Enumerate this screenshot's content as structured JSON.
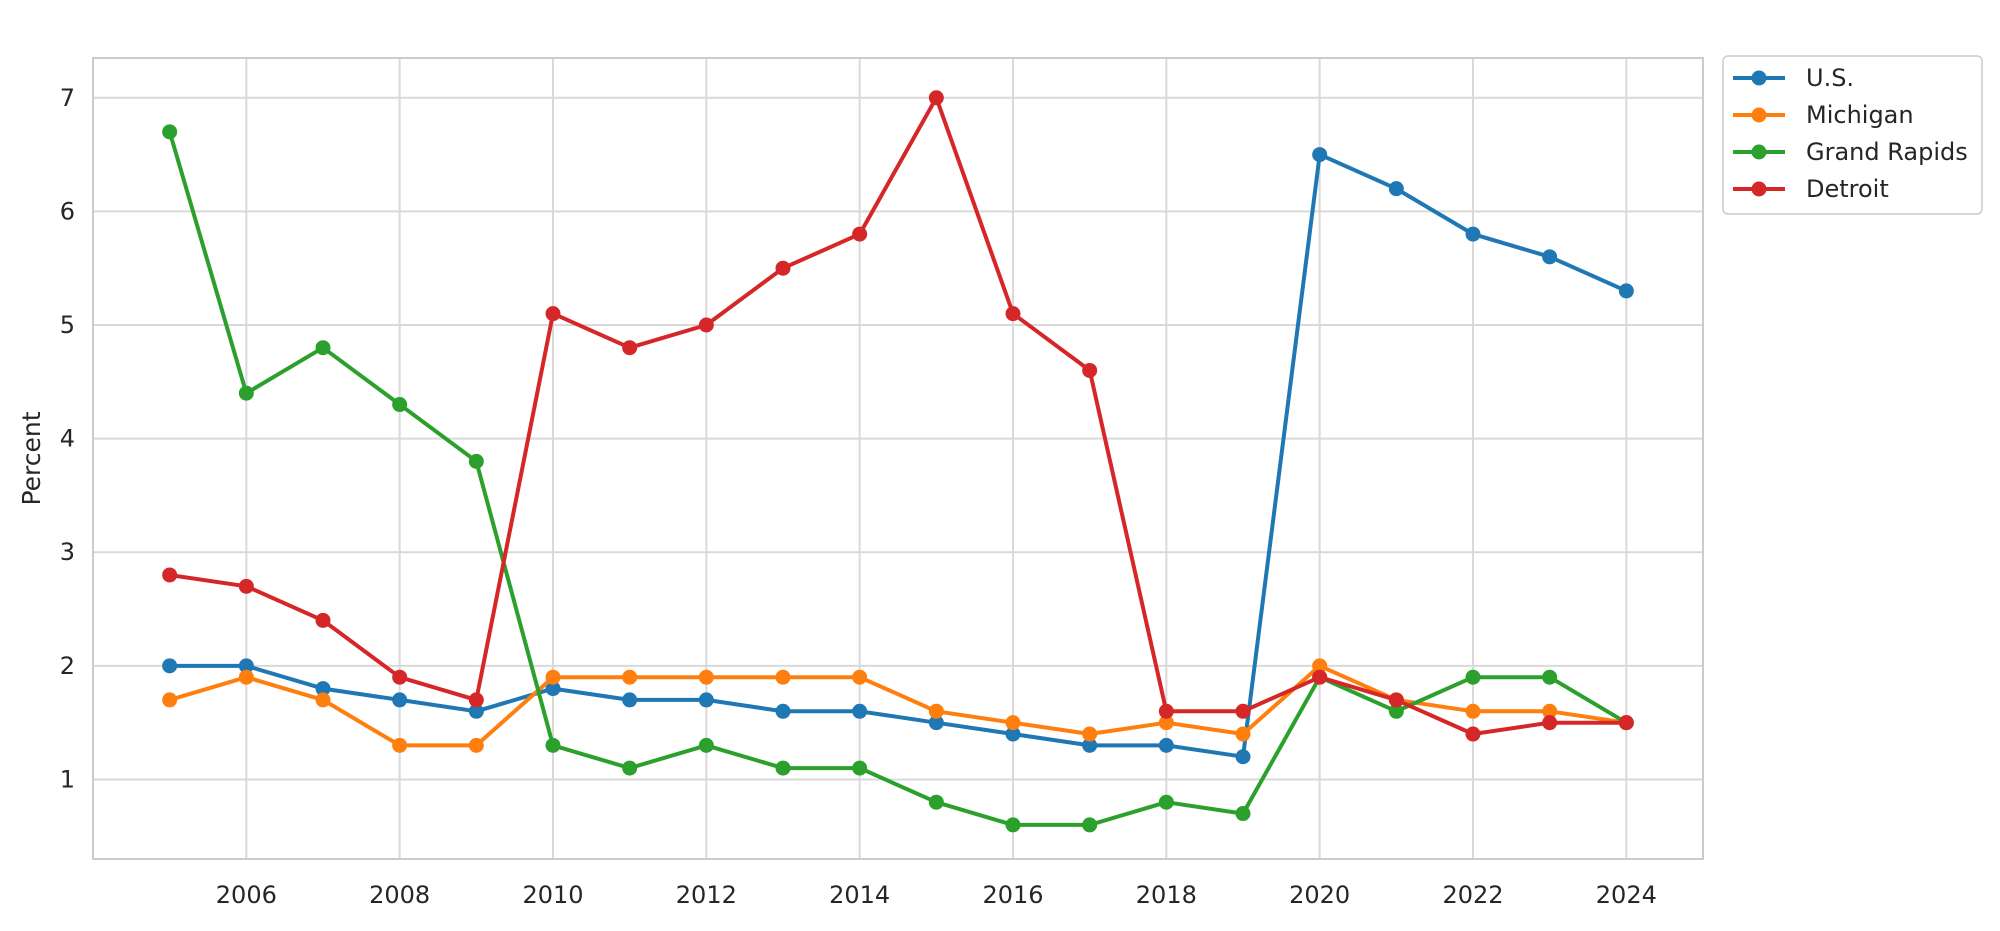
{
  "chart_data": {
    "type": "line",
    "title": "",
    "xlabel": "",
    "ylabel": "Percent",
    "x": [
      2005,
      2006,
      2007,
      2008,
      2009,
      2010,
      2011,
      2012,
      2013,
      2014,
      2015,
      2016,
      2017,
      2018,
      2019,
      2020,
      2021,
      2022,
      2023,
      2024
    ],
    "x_ticks": [
      "2006",
      "2008",
      "2010",
      "2012",
      "2014",
      "2016",
      "2018",
      "2020",
      "2022",
      "2024"
    ],
    "y_ticks": [
      "1",
      "2",
      "3",
      "4",
      "5",
      "6",
      "7"
    ],
    "xlim": [
      2004.0,
      2025.0
    ],
    "ylim": [
      0.3,
      7.35
    ],
    "grid": true,
    "legend_position": "outside-top-right",
    "series": [
      {
        "name": "U.S.",
        "color": "#1f77b4",
        "values": [
          2.0,
          2.0,
          1.8,
          1.7,
          1.6,
          1.8,
          1.7,
          1.7,
          1.6,
          1.6,
          1.5,
          1.4,
          1.3,
          1.3,
          1.2,
          6.5,
          6.2,
          5.8,
          5.6,
          5.3
        ]
      },
      {
        "name": "Michigan",
        "color": "#ff7f0e",
        "values": [
          1.7,
          1.9,
          1.7,
          1.3,
          1.3,
          1.9,
          1.9,
          1.9,
          1.9,
          1.9,
          1.6,
          1.5,
          1.4,
          1.5,
          1.4,
          2.0,
          1.7,
          1.6,
          1.6,
          1.5
        ]
      },
      {
        "name": "Grand Rapids",
        "color": "#2ca02c",
        "values": [
          6.7,
          4.4,
          4.8,
          4.3,
          3.8,
          1.3,
          1.1,
          1.3,
          1.1,
          1.1,
          0.8,
          0.6,
          0.6,
          0.8,
          0.7,
          1.9,
          1.6,
          1.9,
          1.9,
          1.5
        ]
      },
      {
        "name": "Detroit",
        "color": "#d62728",
        "values": [
          2.8,
          2.7,
          2.4,
          1.9,
          1.7,
          5.1,
          4.8,
          5.0,
          5.5,
          5.8,
          7.0,
          5.1,
          4.6,
          1.6,
          1.6,
          1.9,
          1.7,
          1.4,
          1.5,
          1.5
        ]
      }
    ]
  }
}
